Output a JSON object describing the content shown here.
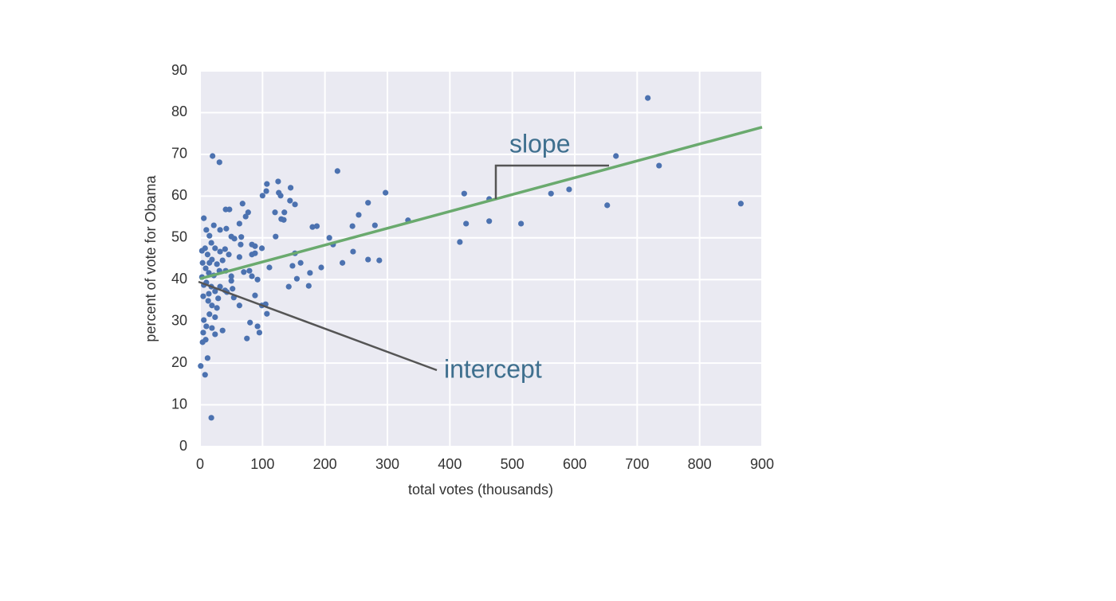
{
  "chart_data": {
    "type": "scatter",
    "xlabel": "total votes (thousands)",
    "ylabel": "percent of vote for Obama",
    "xlim": [
      0,
      900
    ],
    "ylim": [
      0,
      90
    ],
    "xticks": [
      0,
      100,
      200,
      300,
      400,
      500,
      600,
      700,
      800,
      900
    ],
    "yticks": [
      0,
      10,
      20,
      30,
      40,
      50,
      60,
      70,
      80,
      90
    ],
    "grid": true,
    "color": "#4c72b0",
    "x": [
      717,
      666,
      735,
      866,
      652,
      591,
      562,
      514,
      463,
      463,
      423,
      426,
      416,
      333,
      297,
      220,
      269,
      280,
      254,
      244,
      245,
      269,
      287,
      207,
      213,
      228,
      194,
      180,
      187,
      176,
      174,
      161,
      155,
      142,
      148,
      152,
      145,
      152,
      144,
      125,
      126,
      129,
      107,
      106,
      100,
      135,
      130,
      120,
      121,
      134,
      111,
      99,
      88,
      83,
      88,
      83,
      92,
      88,
      99,
      105,
      107,
      92,
      95,
      75,
      80,
      63,
      73,
      77,
      68,
      63,
      66,
      65,
      63,
      79,
      70,
      83,
      50,
      52,
      54,
      43,
      36,
      20,
      31,
      41,
      47,
      6,
      22,
      32,
      42,
      50,
      55,
      10,
      15,
      18,
      24,
      32,
      40,
      46,
      8,
      12,
      19,
      27,
      36,
      4,
      9,
      14,
      22,
      31,
      41,
      50,
      3,
      10,
      18,
      24,
      32,
      40,
      5,
      13,
      19,
      27,
      15,
      6,
      10,
      19,
      24,
      5,
      9,
      4,
      12,
      1,
      8,
      18,
      3,
      15,
      24,
      14,
      29,
      6
    ],
    "values": [
      83.5,
      69.6,
      67.3,
      58.2,
      57.8,
      61.6,
      60.6,
      53.4,
      54.0,
      59.3,
      60.6,
      53.4,
      49.0,
      54.2,
      60.8,
      66.0,
      58.4,
      53.0,
      55.5,
      52.8,
      46.7,
      44.8,
      44.6,
      50.0,
      48.4,
      44.0,
      42.9,
      52.6,
      52.8,
      41.6,
      38.5,
      44.0,
      40.2,
      38.3,
      43.3,
      46.3,
      62.0,
      58.0,
      58.9,
      63.5,
      60.8,
      60.1,
      62.9,
      61.2,
      60.1,
      56.1,
      54.5,
      56.1,
      50.3,
      54.3,
      42.9,
      47.5,
      48.0,
      48.4,
      46.3,
      46.0,
      40.0,
      36.2,
      33.8,
      34.1,
      31.8,
      28.8,
      27.3,
      25.9,
      29.7,
      33.8,
      55.1,
      56.1,
      58.2,
      53.4,
      50.2,
      48.4,
      45.4,
      42.1,
      41.8,
      40.8,
      40.8,
      37.8,
      35.7,
      37.0,
      27.8,
      69.6,
      68.1,
      56.8,
      56.8,
      54.7,
      53.0,
      51.9,
      52.2,
      50.3,
      49.8,
      51.9,
      50.5,
      48.8,
      47.5,
      46.7,
      47.3,
      46.0,
      47.5,
      46.0,
      44.8,
      43.7,
      44.6,
      44.0,
      42.7,
      41.6,
      41.0,
      42.1,
      42.1,
      39.7,
      40.6,
      39.3,
      38.3,
      37.2,
      38.3,
      37.4,
      36.0,
      34.9,
      33.8,
      33.2,
      31.7,
      30.3,
      28.8,
      28.4,
      26.9,
      27.3,
      25.6,
      25.0,
      21.2,
      19.3,
      17.2,
      6.9,
      46.9,
      44.0,
      31.0,
      36.6,
      35.5,
      38.7
    ],
    "fit": {
      "x": [
        0,
        900
      ],
      "values": [
        40.2,
        76.5
      ],
      "color": "#6aaa6e"
    },
    "annotations": [
      "slope",
      "intercept"
    ]
  }
}
